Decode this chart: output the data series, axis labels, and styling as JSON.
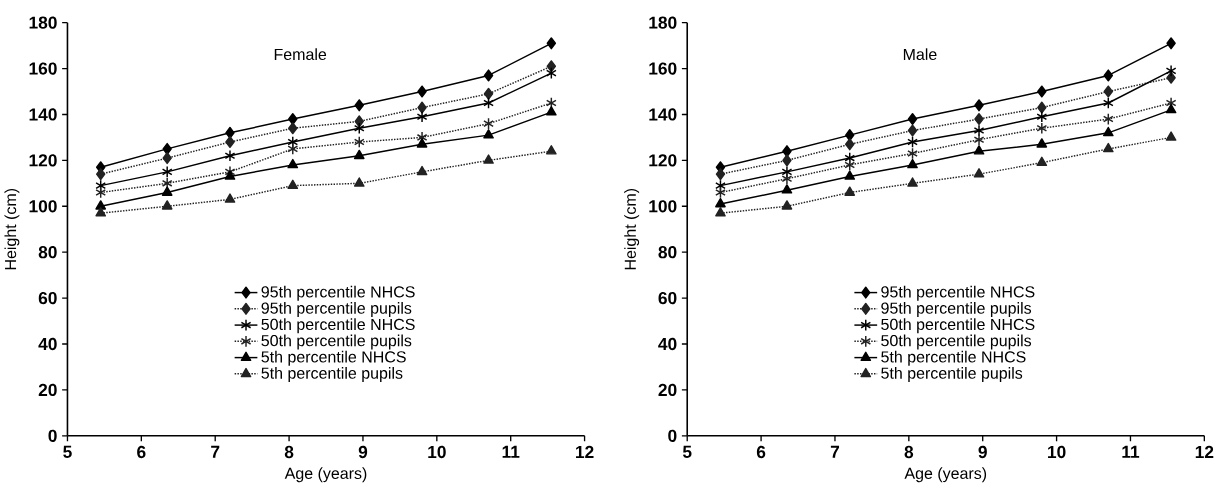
{
  "chart_data": [
    {
      "type": "line",
      "title": "Female",
      "xlabel": "Age (years)",
      "ylabel": "Height (cm)",
      "xlim": [
        5,
        12
      ],
      "xticks": [
        5,
        6,
        7,
        8,
        9,
        10,
        11,
        12
      ],
      "ylim": [
        0,
        180
      ],
      "yticks": [
        0,
        20,
        40,
        60,
        80,
        100,
        120,
        140,
        160,
        180
      ],
      "grid": false,
      "legend": "bottom",
      "x": [
        5.45,
        6.35,
        7.2,
        8.05,
        8.95,
        9.8,
        10.7,
        11.55
      ],
      "series": [
        {
          "name": "95th percentile NHCS",
          "color": "#000000",
          "marker": "diamond",
          "line_style": "solid",
          "values": [
            117,
            125,
            132,
            138,
            144,
            150,
            157,
            171
          ]
        },
        {
          "name": "95th percentile pupils",
          "color": "#222222",
          "marker": "diamond",
          "line_style": "dotted",
          "values": [
            114,
            121,
            128,
            134,
            137,
            143,
            149,
            161
          ]
        },
        {
          "name": "50th percentile NHCS",
          "color": "#000000",
          "marker": "cross",
          "line_style": "solid",
          "values": [
            109,
            115,
            122,
            128,
            134,
            139,
            145,
            158
          ]
        },
        {
          "name": "50th percentile pupils",
          "color": "#222222",
          "marker": "cross",
          "line_style": "dotted",
          "values": [
            106,
            110,
            115,
            125,
            128,
            130,
            136,
            145
          ]
        },
        {
          "name": "5th percentile NHCS",
          "color": "#000000",
          "marker": "triangle",
          "line_style": "solid",
          "values": [
            100,
            106,
            113,
            118,
            122,
            127,
            131,
            141
          ]
        },
        {
          "name": "5th percentile pupils",
          "color": "#222222",
          "marker": "triangle",
          "line_style": "dotted",
          "values": [
            97,
            100,
            103,
            109,
            110,
            115,
            120,
            124
          ]
        }
      ]
    },
    {
      "type": "line",
      "title": "Male",
      "xlabel": "Age (years)",
      "ylabel": "Height (cm)",
      "xlim": [
        5,
        12
      ],
      "xticks": [
        5,
        6,
        7,
        8,
        9,
        10,
        11,
        12
      ],
      "ylim": [
        0,
        180
      ],
      "yticks": [
        0,
        20,
        40,
        60,
        80,
        100,
        120,
        140,
        160,
        180
      ],
      "grid": false,
      "legend": "bottom",
      "x": [
        5.45,
        6.35,
        7.2,
        8.05,
        8.95,
        9.8,
        10.7,
        11.55
      ],
      "series": [
        {
          "name": "95th percentile NHCS",
          "color": "#000000",
          "marker": "diamond",
          "line_style": "solid",
          "values": [
            117,
            124,
            131,
            138,
            144,
            150,
            157,
            171
          ]
        },
        {
          "name": "95th percentile pupils",
          "color": "#222222",
          "marker": "diamond",
          "line_style": "dotted",
          "values": [
            114,
            120,
            127,
            133,
            138,
            143,
            150,
            156
          ]
        },
        {
          "name": "50th percentile NHCS",
          "color": "#000000",
          "marker": "cross",
          "line_style": "solid",
          "values": [
            109,
            115,
            121,
            128,
            133,
            139,
            145,
            159
          ]
        },
        {
          "name": "50th percentile pupils",
          "color": "#222222",
          "marker": "cross",
          "line_style": "dotted",
          "values": [
            106,
            112,
            118,
            123,
            129,
            134,
            138,
            145
          ]
        },
        {
          "name": "5th percentile NHCS",
          "color": "#000000",
          "marker": "triangle",
          "line_style": "solid",
          "values": [
            101,
            107,
            113,
            118,
            124,
            127,
            132,
            142
          ]
        },
        {
          "name": "5th percentile pupils",
          "color": "#222222",
          "marker": "triangle",
          "line_style": "dotted",
          "values": [
            97,
            100,
            106,
            110,
            114,
            119,
            125,
            130
          ]
        }
      ]
    }
  ]
}
